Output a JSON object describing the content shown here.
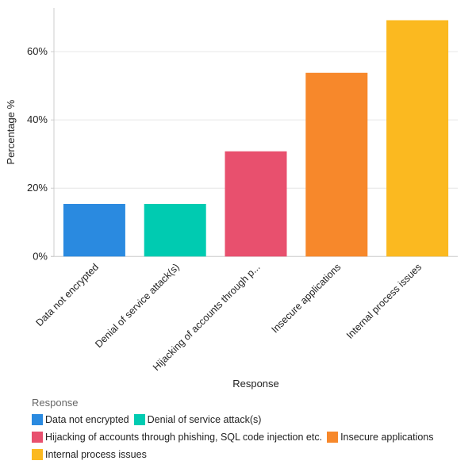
{
  "chart_data": {
    "type": "bar",
    "categories": [
      "Data not encrypted",
      "Denial of service attack(s)",
      "Hijacking of accounts through phishing, SQL code injection etc.",
      "Insecure applications",
      "Internal process issues"
    ],
    "tick_labels": [
      "Data not encrypted",
      "Denial of service attack(s)",
      "Hijacking of accounts through p...",
      "Insecure applications",
      "Internal process issues"
    ],
    "values": [
      15.4,
      15.4,
      30.8,
      53.8,
      69.2
    ],
    "colors": [
      "#2a8ae0",
      "#00cbb1",
      "#e8506e",
      "#f7882b",
      "#fbb920"
    ],
    "xlabel": "Response",
    "ylabel": "Percentage %",
    "ylim": [
      0,
      72.8
    ],
    "yticks": [
      0,
      20,
      40,
      60
    ],
    "ytick_labels": [
      "0%",
      "20%",
      "40%",
      "60%"
    ],
    "grid": true,
    "legend": {
      "title": "Response",
      "placement": "bottom-left"
    }
  }
}
